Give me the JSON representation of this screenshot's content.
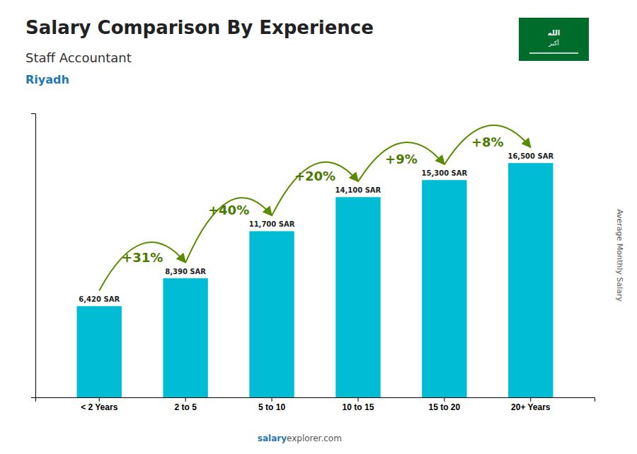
{
  "chart_data": {
    "type": "bar",
    "title": "Salary Comparison By Experience",
    "subtitle": "Staff Accountant",
    "ylabel": "Average Monthly Salary",
    "categories": [
      "< 2 Years",
      "2 to 5",
      "5 to 10",
      "10 to 15",
      "15 to 20",
      "20+ Years"
    ],
    "values": [
      6420,
      8390,
      11700,
      14100,
      15300,
      16500
    ],
    "value_labels": [
      "6,420 SAR",
      "8,390 SAR",
      "11,700 SAR",
      "14,100 SAR",
      "15,300 SAR",
      "16,500 SAR"
    ],
    "annotations": [
      "+31%",
      "+40%",
      "+20%",
      "+9%",
      "+8%",
      "Riyadh",
      "salary",
      "explorer.com",
      "الله",
      "أكبر"
    ],
    "color": "#00bcd4",
    "ylim": [
      0,
      20000
    ],
    "data_labels": true,
    "tick_labels": "x"
  }
}
